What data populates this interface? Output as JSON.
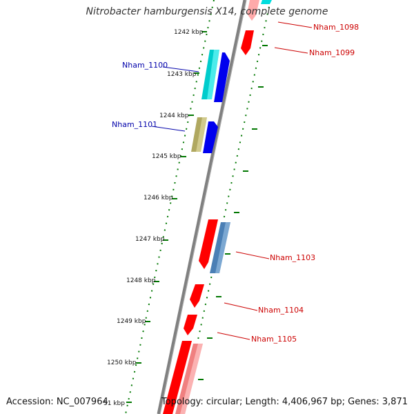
{
  "title": "Nitrobacter hamburgensis X14, complete genome",
  "footer": {
    "accession": "Accession: NC_007964",
    "summary": "Topology: circular; Length: 4,406,967 bp; Genes: 3,871"
  },
  "kbp_labels": [
    {
      "text": "1242 kbp"
    },
    {
      "text": "1243 kbp"
    },
    {
      "text": "1244 kbp"
    },
    {
      "text": "1245 kbp"
    },
    {
      "text": "1246 kbp"
    },
    {
      "text": "1247 kbp"
    },
    {
      "text": "1248 kbp"
    },
    {
      "text": "1249 kbp"
    },
    {
      "text": "1250 kbp"
    },
    {
      "text": "51 kbp"
    }
  ],
  "genes": [
    {
      "name": "Nham_1098",
      "color": "#cc0000"
    },
    {
      "name": "Nham_1099",
      "color": "#cc0000"
    },
    {
      "name": "Nham_1100",
      "color": "#0000aa"
    },
    {
      "name": "Nham_1101",
      "color": "#0000aa"
    },
    {
      "name": "Nham_1103",
      "color": "#cc0000"
    },
    {
      "name": "Nham_1104",
      "color": "#cc0000"
    },
    {
      "name": "Nham_1105",
      "color": "#cc0000"
    }
  ],
  "colors": {
    "backbone": "#808080",
    "ticks": "#007700",
    "red_gene": "#ff0000",
    "blue_gene": "#0000ee",
    "cyan_gene": "#00cccc",
    "olive_gene": "#b0a860",
    "steel_gene": "#4a7fb5",
    "pink_gene": "#f08080"
  }
}
